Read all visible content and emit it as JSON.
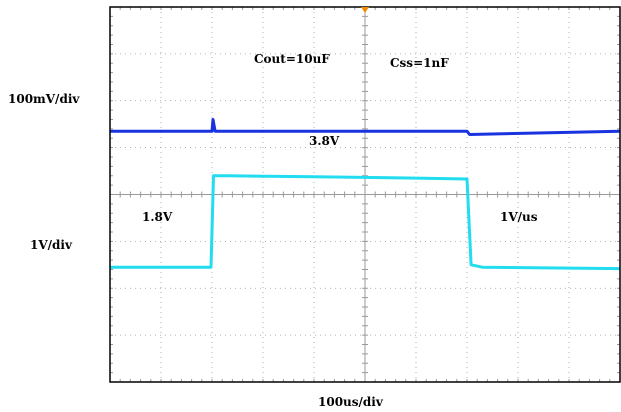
{
  "chart_data": {
    "type": "line",
    "xlabel": "100us/div",
    "ylabels": {
      "ch1": "100mV/div",
      "ch2": "1V/div"
    },
    "annotations": {
      "cout": "Cout=10uF",
      "css": "Css=1nF",
      "high_voltage": "3.8V",
      "low_voltage": "1.8V",
      "slew": "1V/us"
    },
    "x_divisions": 10,
    "y_divisions": 8,
    "grid": true,
    "series": [
      {
        "channel": "ch1",
        "color": "#1a33e0",
        "x": [
          0,
          2.0,
          2.02,
          2.06,
          7.0,
          7.05,
          10
        ],
        "y": [
          2.65,
          2.65,
          2.4,
          2.65,
          2.65,
          2.72,
          2.65
        ]
      },
      {
        "channel": "ch2",
        "color": "#22dcf0",
        "x": [
          0,
          1.98,
          2.03,
          2.3,
          4.0,
          6.0,
          7.0,
          7.08,
          7.3,
          10
        ],
        "y": [
          5.55,
          5.55,
          3.6,
          3.6,
          3.62,
          3.65,
          3.67,
          5.5,
          5.55,
          5.58
        ]
      }
    ]
  },
  "colors": {
    "frame": "#000000",
    "grid": "#9a9a9a",
    "trigger_marker": "#f08a00"
  }
}
